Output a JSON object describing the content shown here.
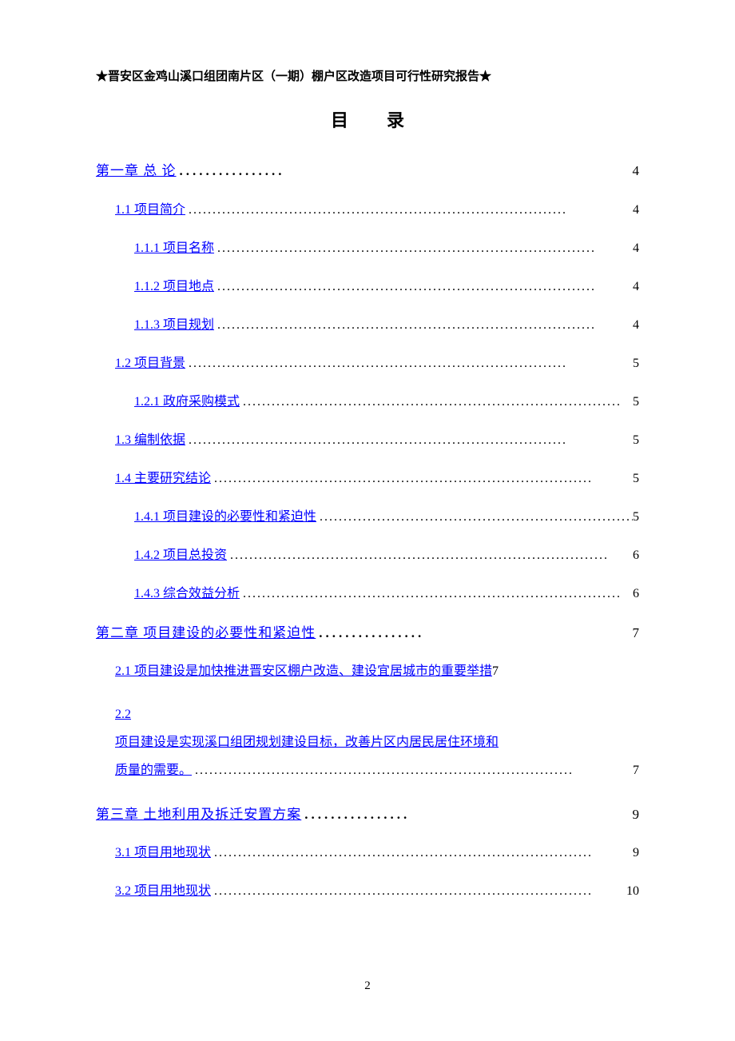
{
  "header": "★晋安区金鸡山溪口组团南片区（一期）棚户区改造项目可行性研究报告★",
  "title": "目录",
  "dots_bold": "................",
  "dots_thin": "...............................................................................",
  "page_number": "2",
  "toc": {
    "ch1": {
      "label": "第一章 总 论",
      "page": "4"
    },
    "s1_1": {
      "label": "1.1 项目简介",
      "page": "4"
    },
    "s1_1_1": {
      "label": "1.1.1 项目名称",
      "page": "4"
    },
    "s1_1_2": {
      "label": "1.1.2 项目地点",
      "page": "4"
    },
    "s1_1_3": {
      "label": "1.1.3 项目规划",
      "page": "4"
    },
    "s1_2": {
      "label": "1.2 项目背景",
      "page": "5"
    },
    "s1_2_1": {
      "label": "1.2.1 政府采购模式",
      "page": "5"
    },
    "s1_3": {
      "label": "1.3 编制依据",
      "page": "5"
    },
    "s1_4": {
      "label": "1.4 主要研究结论",
      "page": "5"
    },
    "s1_4_1": {
      "label": "1.4.1 项目建设的必要性和紧迫性",
      "page": "5"
    },
    "s1_4_2": {
      "label": "1.4.2 项目总投资",
      "page": "6"
    },
    "s1_4_3": {
      "label": "1.4.3 综合效益分析",
      "page": "6"
    },
    "ch2": {
      "label": "第二章 项目建设的必要性和紧迫性",
      "page": "7"
    },
    "s2_1": {
      "label": "2.1 项目建设是加快推进晋安区棚户改造、建设宜居城市的重要举措",
      "page": "7"
    },
    "s2_2_num": {
      "label": "2.2"
    },
    "s2_2_line1": {
      "label": "项目建设是实现溪口组团规划建设目标，改善片区内居民居住环境和"
    },
    "s2_2_line2": {
      "label": "质量的需要。",
      "page": "7"
    },
    "ch3": {
      "label": "第三章 土地利用及拆迁安置方案",
      "page": "9"
    },
    "s3_1": {
      "label": "3.1 项目用地现状",
      "page": "9"
    },
    "s3_2": {
      "label": "3.2 项目用地现状",
      "page": "10"
    }
  },
  "colors": {
    "link": "#0000ff",
    "text": "#000000",
    "background": "#ffffff"
  },
  "typography": {
    "header_fontsize": 15,
    "title_fontsize": 22,
    "body_fontsize": 16,
    "font_family": "SimSun"
  }
}
